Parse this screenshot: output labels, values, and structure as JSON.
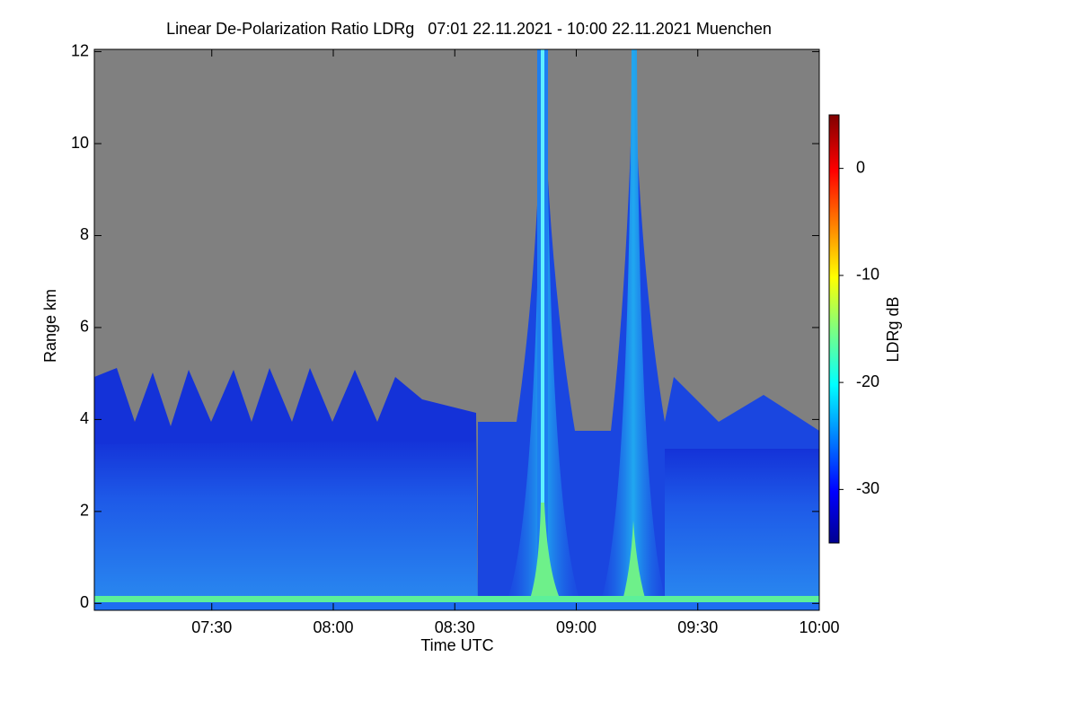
{
  "chart_data": {
    "type": "heatmap",
    "title": "Linear De-Polarization Ratio LDRg   07:01 22.11.2021 - 10:00 22.11.2021 Muenchen",
    "x_label": "Time UTC",
    "y_label": "Range km",
    "colorbar_label": "LDRg dB",
    "xlim": [
      421,
      600
    ],
    "xticks": [
      {
        "value": 450,
        "label": "07:30"
      },
      {
        "value": 480,
        "label": "08:00"
      },
      {
        "value": 510,
        "label": "08:30"
      },
      {
        "value": 540,
        "label": "09:00"
      },
      {
        "value": 570,
        "label": "09:30"
      },
      {
        "value": 600,
        "label": "10:00"
      }
    ],
    "ylim": [
      -0.15,
      12.05
    ],
    "yticks": [
      0,
      2,
      4,
      6,
      8,
      10,
      12
    ],
    "clim": [
      -35,
      5
    ],
    "cticks": [
      0,
      -10,
      -20,
      -30
    ],
    "colormap": "jet",
    "missing_color": "#808080"
  }
}
